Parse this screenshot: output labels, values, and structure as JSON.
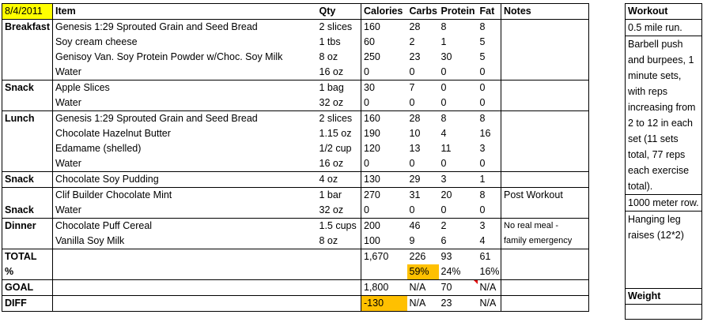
{
  "header": {
    "date": "8/4/2011",
    "item": "Item",
    "qty": "Qty",
    "calories": "Calories",
    "carbs": "Carbs",
    "protein": "Protein",
    "fat": "Fat",
    "notes": "Notes"
  },
  "meals": {
    "breakfast": "Breakfast",
    "snack1": "Snack",
    "lunch": "Lunch",
    "snack2": "Snack",
    "snack3": "Snack",
    "dinner": "Dinner"
  },
  "rows": [
    {
      "item": "Genesis 1:29 Sprouted Grain and Seed Bread",
      "qty": "2 slices",
      "cal": "160",
      "carbs": "28",
      "protein": "8",
      "fat": "8",
      "notes": ""
    },
    {
      "item": "Soy cream cheese",
      "qty": "1 tbs",
      "cal": "60",
      "carbs": "2",
      "protein": "1",
      "fat": "5",
      "notes": ""
    },
    {
      "item": "Genisoy  Van. Soy Protein Powder w/Choc. Soy Milk",
      "qty": "8 oz",
      "cal": "250",
      "carbs": "23",
      "protein": "30",
      "fat": "5",
      "notes": ""
    },
    {
      "item": "Water",
      "qty": "16 oz",
      "cal": "0",
      "carbs": "0",
      "protein": "0",
      "fat": "0",
      "notes": ""
    },
    {
      "item": "Apple Slices",
      "qty": "1 bag",
      "cal": "30",
      "carbs": "7",
      "protein": "0",
      "fat": "0",
      "notes": ""
    },
    {
      "item": "Water",
      "qty": "32 oz",
      "cal": "0",
      "carbs": "0",
      "protein": "0",
      "fat": "0",
      "notes": ""
    },
    {
      "item": "Genesis 1:29 Sprouted Grain and Seed Bread",
      "qty": "2 slices",
      "cal": "160",
      "carbs": "28",
      "protein": "8",
      "fat": "8",
      "notes": ""
    },
    {
      "item": "Chocolate Hazelnut Butter",
      "qty": "1.15 oz",
      "cal": "190",
      "carbs": "10",
      "protein": "4",
      "fat": "16",
      "notes": ""
    },
    {
      "item": "Edamame (shelled)",
      "qty": "1/2 cup",
      "cal": "120",
      "carbs": "13",
      "protein": "11",
      "fat": "3",
      "notes": ""
    },
    {
      "item": "Water",
      "qty": "16 oz",
      "cal": "0",
      "carbs": "0",
      "protein": "0",
      "fat": "0",
      "notes": ""
    },
    {
      "item": "Chocolate Soy Pudding",
      "qty": "4 oz",
      "cal": "130",
      "carbs": "29",
      "protein": "3",
      "fat": "1",
      "notes": ""
    },
    {
      "item": "Clif Builder Chocolate Mint",
      "qty": "1 bar",
      "cal": "270",
      "carbs": "31",
      "protein": "20",
      "fat": "8",
      "notes": "Post Workout"
    },
    {
      "item": "Water",
      "qty": "32 oz",
      "cal": "0",
      "carbs": "0",
      "protein": "0",
      "fat": "0",
      "notes": ""
    },
    {
      "item": "Chocolate Puff Cereal",
      "qty": "1.5 cups",
      "cal": "200",
      "carbs": "46",
      "protein": "2",
      "fat": "3",
      "notes": "No real meal -"
    },
    {
      "item": "Vanilla Soy Milk",
      "qty": "8 oz",
      "cal": "100",
      "carbs": "9",
      "protein": "6",
      "fat": "4",
      "notes": "family emergency"
    }
  ],
  "total": {
    "label": "TOTAL",
    "cal": "1,670",
    "carbs": "226",
    "protein": "93",
    "fat": "61"
  },
  "percent": {
    "label": "%",
    "carbs": "59%",
    "protein": "24%",
    "fat": "16%"
  },
  "goal": {
    "label": "GOAL",
    "cal": "1,800",
    "carbs": "N/A",
    "protein": "70",
    "fat": "N/A"
  },
  "diff": {
    "label": "DIFF",
    "cal": "-130",
    "carbs": "N/A",
    "protein": "23",
    "fat": "N/A"
  },
  "workout": {
    "title": "Workout",
    "items": [
      "0.5 mile run.",
      "Barbell push and burpees, 1 minute sets, with reps increasing from 2 to 12 in each set (11 sets total, 77 reps each exercise total).",
      "1000 meter row.",
      "Hanging leg raises (12*2)"
    ],
    "weight_label": "Weight"
  },
  "colors": {
    "date_highlight": "#ffff00",
    "cell_highlight": "#ffc000",
    "comment_marker": "#e00000"
  }
}
